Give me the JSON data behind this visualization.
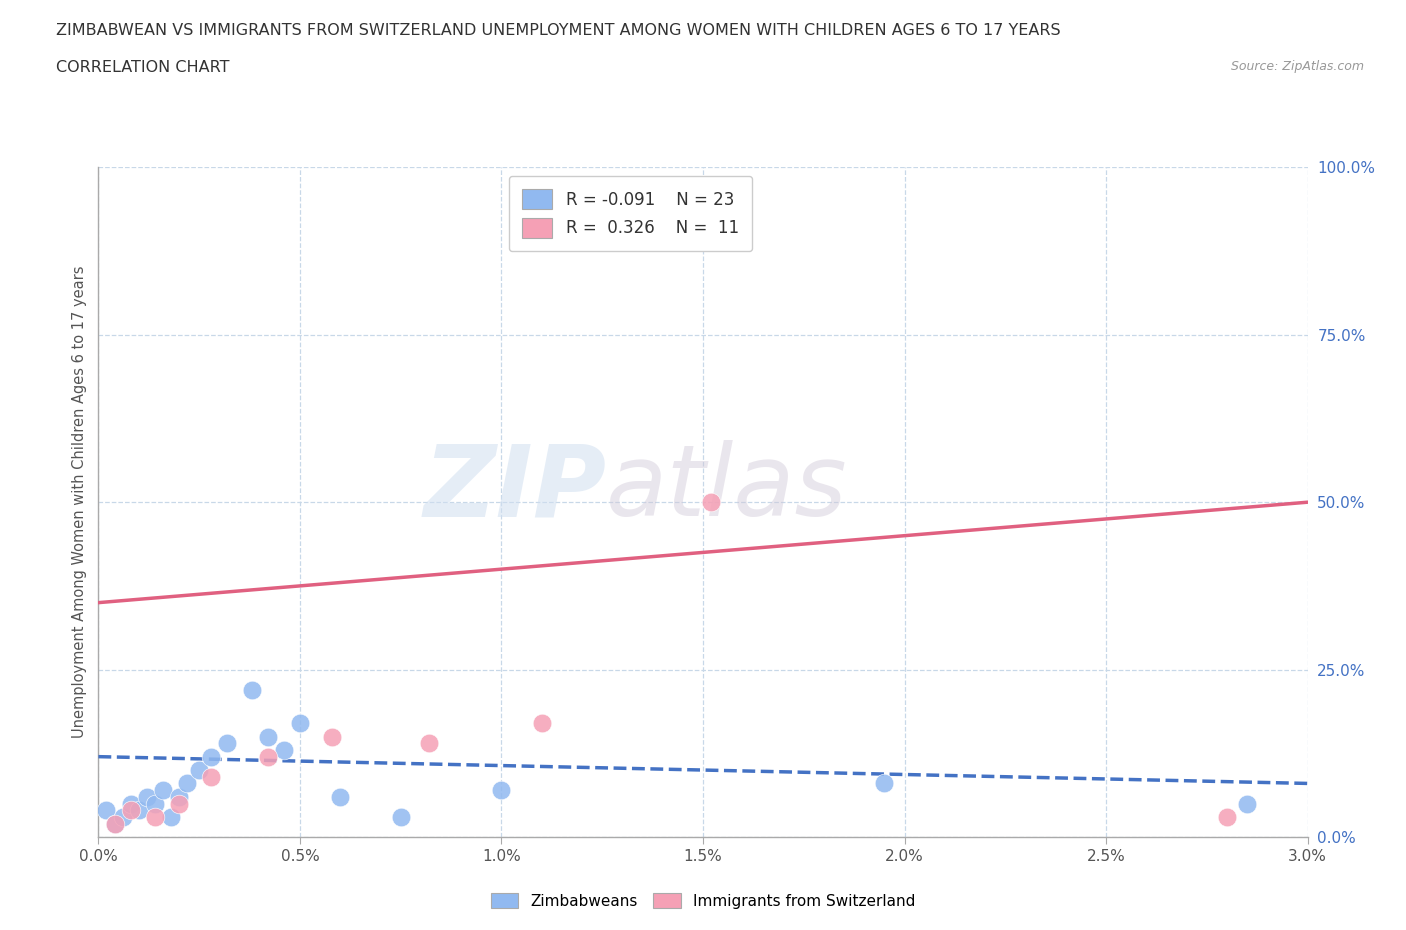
{
  "title_line1": "ZIMBABWEAN VS IMMIGRANTS FROM SWITZERLAND UNEMPLOYMENT AMONG WOMEN WITH CHILDREN AGES 6 TO 17 YEARS",
  "title_line2": "CORRELATION CHART",
  "source": "Source: ZipAtlas.com",
  "ylabel": "Unemployment Among Women with Children Ages 6 to 17 years",
  "xlim": [
    0.0,
    3.0
  ],
  "ylim": [
    0.0,
    100.0
  ],
  "xticks": [
    0.0,
    0.5,
    1.0,
    1.5,
    2.0,
    2.5,
    3.0
  ],
  "yticks": [
    0.0,
    25.0,
    50.0,
    75.0,
    100.0
  ],
  "zimbabwean_color": "#91b9f0",
  "swiss_color": "#f5a0b5",
  "zimbabwean_R": -0.091,
  "zimbabwean_N": 23,
  "swiss_R": 0.326,
  "swiss_N": 11,
  "zimbabwean_x": [
    0.02,
    0.04,
    0.06,
    0.08,
    0.1,
    0.12,
    0.14,
    0.16,
    0.18,
    0.2,
    0.22,
    0.25,
    0.28,
    0.32,
    0.38,
    0.42,
    0.46,
    0.5,
    0.6,
    0.75,
    1.0,
    1.95,
    2.85
  ],
  "zimbabwean_y": [
    4.0,
    2.0,
    3.0,
    5.0,
    4.0,
    6.0,
    5.0,
    7.0,
    3.0,
    6.0,
    8.0,
    10.0,
    12.0,
    14.0,
    22.0,
    15.0,
    13.0,
    17.0,
    6.0,
    3.0,
    7.0,
    8.0,
    5.0
  ],
  "swiss_x": [
    0.04,
    0.08,
    0.14,
    0.2,
    0.28,
    0.42,
    0.58,
    0.82,
    1.1,
    1.52,
    2.8
  ],
  "swiss_y": [
    2.0,
    4.0,
    3.0,
    5.0,
    9.0,
    12.0,
    15.0,
    14.0,
    17.0,
    50.0,
    3.0
  ],
  "zim_trend_x0": 0.0,
  "zim_trend_y0": 12.0,
  "zim_trend_x1": 3.0,
  "zim_trend_y1": 8.0,
  "swiss_trend_x0": 0.0,
  "swiss_trend_y0": 35.0,
  "swiss_trend_x1": 3.0,
  "swiss_trend_y1": 50.0,
  "watermark_part1": "ZIP",
  "watermark_part2": "atlas",
  "background_color": "#ffffff",
  "grid_color": "#c8d8e8",
  "trend_blue_color": "#4472c4",
  "trend_pink_color": "#e06080"
}
